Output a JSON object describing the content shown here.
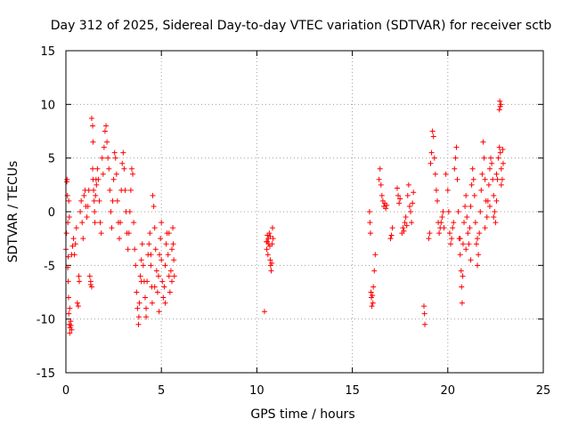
{
  "chart_data": {
    "type": "scatter",
    "title": "Day 312 of 2025, Sidereal Day-to-day VTEC variation (SDTVAR) for receiver sctb",
    "xlabel": "GPS time / hours",
    "ylabel": "SDTVAR / TECUs",
    "xlim": [
      0,
      25
    ],
    "ylim": [
      -15,
      15
    ],
    "grid": true,
    "marker": "plus",
    "color": "#ff0000",
    "x_ticks": [
      {
        "value": 0,
        "label": "0"
      },
      {
        "value": 5,
        "label": "5"
      },
      {
        "value": 10,
        "label": "10"
      },
      {
        "value": 15,
        "label": "15"
      },
      {
        "value": 20,
        "label": "20"
      },
      {
        "value": 25,
        "label": "25"
      }
    ],
    "y_ticks": [
      {
        "value": -15,
        "label": "-15"
      },
      {
        "value": -10,
        "label": "-10"
      },
      {
        "value": -5,
        "label": "-5"
      },
      {
        "value": 0,
        "label": "0"
      },
      {
        "value": 5,
        "label": "5"
      },
      {
        "value": 10,
        "label": "10"
      },
      {
        "value": 15,
        "label": "15"
      }
    ],
    "series": [
      {
        "name": "SDTVAR",
        "points": [
          [
            0.0,
            -3.5
          ],
          [
            0.03,
            -2.0
          ],
          [
            0.05,
            2.8
          ],
          [
            0.08,
            1.5
          ],
          [
            0.1,
            -1.0
          ],
          [
            0.12,
            -4.2
          ],
          [
            0.14,
            -8.0
          ],
          [
            0.15,
            -9.5
          ],
          [
            0.18,
            -10.5
          ],
          [
            0.2,
            -11.3
          ],
          [
            0.22,
            -10.8
          ],
          [
            0.25,
            -10.2
          ],
          [
            0.27,
            -10.6
          ],
          [
            0.3,
            -11.0
          ],
          [
            0.12,
            -6.5
          ],
          [
            0.1,
            -5.2
          ],
          [
            0.2,
            -9.0
          ],
          [
            0.06,
            3.0
          ],
          [
            0.15,
            1.0
          ],
          [
            0.18,
            -0.5
          ],
          [
            0.3,
            -4.0
          ],
          [
            0.35,
            -3.2
          ],
          [
            0.4,
            -2.5
          ],
          [
            0.45,
            -4.0
          ],
          [
            0.5,
            -3.0
          ],
          [
            0.55,
            -1.5
          ],
          [
            0.6,
            -8.5
          ],
          [
            0.65,
            -8.8
          ],
          [
            0.7,
            -6.5
          ],
          [
            0.75,
            0.0
          ],
          [
            0.8,
            1.0
          ],
          [
            0.85,
            -1.0
          ],
          [
            0.9,
            -2.5
          ],
          [
            0.95,
            1.5
          ],
          [
            1.0,
            2.0
          ],
          [
            1.05,
            0.5
          ],
          [
            1.1,
            -0.5
          ],
          [
            1.15,
            0.5
          ],
          [
            1.2,
            2.0
          ],
          [
            0.68,
            -6.0
          ],
          [
            1.25,
            -6.0
          ],
          [
            1.3,
            -6.5
          ],
          [
            1.35,
            -7.0
          ],
          [
            1.4,
            4.0
          ],
          [
            1.42,
            3.0
          ],
          [
            1.45,
            2.0
          ],
          [
            1.48,
            1.0
          ],
          [
            1.5,
            0.0
          ],
          [
            1.52,
            -1.0
          ],
          [
            1.55,
            1.5
          ],
          [
            1.58,
            3.0
          ],
          [
            1.6,
            2.5
          ],
          [
            1.65,
            4.0
          ],
          [
            1.7,
            3.0
          ],
          [
            1.75,
            1.0
          ],
          [
            1.8,
            -1.0
          ],
          [
            1.85,
            -2.0
          ],
          [
            1.9,
            5.0
          ],
          [
            1.95,
            3.5
          ],
          [
            2.0,
            6.0
          ],
          [
            1.35,
            8.7
          ],
          [
            1.4,
            8.0
          ],
          [
            1.42,
            6.5
          ],
          [
            1.3,
            -6.8
          ],
          [
            2.05,
            7.5
          ],
          [
            2.1,
            8.0
          ],
          [
            2.15,
            6.5
          ],
          [
            2.2,
            5.0
          ],
          [
            2.25,
            4.0
          ],
          [
            2.3,
            2.0
          ],
          [
            2.35,
            0.0
          ],
          [
            2.4,
            -1.5
          ],
          [
            2.45,
            1.0
          ],
          [
            2.5,
            3.0
          ],
          [
            2.55,
            5.5
          ],
          [
            2.6,
            5.0
          ],
          [
            2.65,
            3.5
          ],
          [
            2.7,
            1.0
          ],
          [
            2.75,
            -1.0
          ],
          [
            2.8,
            -2.5
          ],
          [
            2.85,
            -1.0
          ],
          [
            2.9,
            2.0
          ],
          [
            2.95,
            4.5
          ],
          [
            3.0,
            5.5
          ],
          [
            3.05,
            4.0
          ],
          [
            3.1,
            2.0
          ],
          [
            3.15,
            0.0
          ],
          [
            3.2,
            -2.0
          ],
          [
            3.25,
            -3.5
          ],
          [
            3.3,
            -2.0
          ],
          [
            3.35,
            0.0
          ],
          [
            3.4,
            2.0
          ],
          [
            3.45,
            4.0
          ],
          [
            3.5,
            3.5
          ],
          [
            3.55,
            -1.0
          ],
          [
            3.6,
            -3.5
          ],
          [
            3.65,
            -5.0
          ],
          [
            3.7,
            -7.5
          ],
          [
            3.75,
            -9.0
          ],
          [
            3.8,
            -10.5
          ],
          [
            3.82,
            -9.8
          ],
          [
            3.85,
            -8.5
          ],
          [
            3.9,
            -6.0
          ],
          [
            3.95,
            -4.5
          ],
          [
            4.0,
            -3.0
          ],
          [
            4.05,
            -5.0
          ],
          [
            4.1,
            -6.5
          ],
          [
            4.15,
            -8.0
          ],
          [
            4.2,
            -9.0
          ],
          [
            4.25,
            -6.5
          ],
          [
            4.3,
            -4.0
          ],
          [
            4.35,
            -3.0
          ],
          [
            4.4,
            -2.0
          ],
          [
            4.45,
            -5.0
          ],
          [
            4.5,
            -7.0
          ],
          [
            4.55,
            1.5
          ],
          [
            4.6,
            0.5
          ],
          [
            4.65,
            -1.5
          ],
          [
            4.7,
            -3.5
          ],
          [
            4.75,
            -5.5
          ],
          [
            4.8,
            -7.5
          ],
          [
            4.85,
            -6.0
          ],
          [
            4.9,
            -4.0
          ],
          [
            4.95,
            -2.5
          ],
          [
            5.0,
            -4.5
          ],
          [
            5.05,
            -6.5
          ],
          [
            5.1,
            -8.0
          ],
          [
            5.15,
            -7.0
          ],
          [
            5.2,
            -5.0
          ],
          [
            5.25,
            -3.0
          ],
          [
            5.3,
            -2.0
          ],
          [
            5.35,
            -4.0
          ],
          [
            5.4,
            -6.0
          ],
          [
            5.45,
            -7.5
          ],
          [
            5.5,
            -5.5
          ],
          [
            5.55,
            -3.5
          ],
          [
            5.6,
            -1.5
          ],
          [
            5.62,
            -3.0
          ],
          [
            5.65,
            -4.5
          ],
          [
            5.68,
            -6.0
          ],
          [
            4.88,
            -9.3
          ],
          [
            4.52,
            -8.5
          ],
          [
            4.2,
            -9.8
          ],
          [
            3.95,
            -6.5
          ],
          [
            4.45,
            -4.0
          ],
          [
            5.0,
            -1.0
          ],
          [
            5.2,
            -8.5
          ],
          [
            5.4,
            -2.0
          ],
          [
            5.55,
            -6.5
          ],
          [
            4.65,
            -7.0
          ],
          [
            10.4,
            -9.3
          ],
          [
            10.5,
            -2.8
          ],
          [
            10.52,
            -3.5
          ],
          [
            10.55,
            -2.2
          ],
          [
            10.58,
            -4.0
          ],
          [
            10.6,
            -2.5
          ],
          [
            10.62,
            -3.0
          ],
          [
            10.65,
            -2.0
          ],
          [
            10.68,
            -3.2
          ],
          [
            10.7,
            -4.5
          ],
          [
            10.72,
            -5.0
          ],
          [
            10.75,
            -5.5
          ],
          [
            10.78,
            -4.8
          ],
          [
            10.8,
            -3.0
          ],
          [
            10.82,
            -1.5
          ],
          [
            10.85,
            -2.5
          ],
          [
            10.55,
            -2.8
          ],
          [
            10.7,
            -2.3
          ],
          [
            15.9,
            0.0
          ],
          [
            15.92,
            -1.0
          ],
          [
            15.95,
            -2.0
          ],
          [
            15.98,
            -7.5
          ],
          [
            16.0,
            -8.0
          ],
          [
            16.02,
            -8.8
          ],
          [
            16.05,
            -7.8
          ],
          [
            16.08,
            -8.5
          ],
          [
            16.1,
            -7.0
          ],
          [
            16.15,
            -5.5
          ],
          [
            16.2,
            -4.0
          ],
          [
            16.4,
            3.0
          ],
          [
            16.45,
            4.0
          ],
          [
            16.5,
            2.5
          ],
          [
            16.55,
            1.5
          ],
          [
            16.6,
            1.0
          ],
          [
            16.65,
            0.5
          ],
          [
            16.7,
            0.8
          ],
          [
            16.75,
            0.3
          ],
          [
            16.8,
            0.6
          ],
          [
            17.0,
            -2.5
          ],
          [
            17.05,
            -2.2
          ],
          [
            17.1,
            -1.5
          ],
          [
            17.35,
            2.2
          ],
          [
            17.4,
            1.5
          ],
          [
            17.45,
            0.8
          ],
          [
            17.5,
            1.2
          ],
          [
            17.6,
            -2.0
          ],
          [
            17.65,
            -1.5
          ],
          [
            17.7,
            -1.8
          ],
          [
            17.75,
            -1.0
          ],
          [
            17.8,
            -0.5
          ],
          [
            17.85,
            -1.3
          ],
          [
            17.9,
            1.5
          ],
          [
            17.95,
            2.5
          ],
          [
            18.0,
            0.5
          ],
          [
            18.05,
            0.0
          ],
          [
            18.1,
            -1.0
          ],
          [
            18.15,
            0.8
          ],
          [
            18.2,
            1.8
          ],
          [
            18.75,
            -8.8
          ],
          [
            18.78,
            -9.5
          ],
          [
            18.8,
            -10.5
          ],
          [
            19.0,
            -2.5
          ],
          [
            19.05,
            -2.0
          ],
          [
            19.1,
            4.5
          ],
          [
            19.15,
            5.5
          ],
          [
            19.2,
            7.5
          ],
          [
            19.25,
            7.0
          ],
          [
            19.3,
            5.0
          ],
          [
            19.35,
            3.5
          ],
          [
            19.4,
            2.0
          ],
          [
            19.45,
            1.0
          ],
          [
            19.5,
            -1.0
          ],
          [
            19.55,
            -2.0
          ],
          [
            19.6,
            -1.5
          ],
          [
            19.65,
            -1.0
          ],
          [
            19.7,
            -0.5
          ],
          [
            19.75,
            0.0
          ],
          [
            19.8,
            -1.5
          ],
          [
            19.9,
            3.5
          ],
          [
            20.0,
            2.0
          ],
          [
            20.05,
            0.0
          ],
          [
            20.1,
            -2.0
          ],
          [
            20.15,
            -3.0
          ],
          [
            20.2,
            -2.5
          ],
          [
            20.25,
            -1.5
          ],
          [
            20.3,
            -1.0
          ],
          [
            20.35,
            4.0
          ],
          [
            20.4,
            5.0
          ],
          [
            20.45,
            6.0
          ],
          [
            20.5,
            3.0
          ],
          [
            20.55,
            0.0
          ],
          [
            20.6,
            -2.5
          ],
          [
            20.65,
            -4.0
          ],
          [
            20.7,
            -5.5
          ],
          [
            20.72,
            -7.0
          ],
          [
            20.75,
            -8.5
          ],
          [
            20.78,
            -6.0
          ],
          [
            20.8,
            -3.0
          ],
          [
            20.85,
            -1.0
          ],
          [
            20.9,
            0.5
          ],
          [
            20.95,
            1.5
          ],
          [
            21.0,
            -0.5
          ],
          [
            21.05,
            -2.0
          ],
          [
            21.1,
            -3.0
          ],
          [
            21.15,
            -1.5
          ],
          [
            21.2,
            0.5
          ],
          [
            21.25,
            2.5
          ],
          [
            21.3,
            4.0
          ],
          [
            21.35,
            3.0
          ],
          [
            21.4,
            1.5
          ],
          [
            21.45,
            -1.0
          ],
          [
            21.5,
            -3.0
          ],
          [
            21.55,
            -5.0
          ],
          [
            21.6,
            -4.0
          ],
          [
            21.65,
            -2.0
          ],
          [
            21.7,
            0.0
          ],
          [
            21.75,
            2.0
          ],
          [
            21.8,
            3.5
          ],
          [
            21.85,
            6.5
          ],
          [
            21.9,
            5.0
          ],
          [
            21.95,
            3.0
          ],
          [
            22.0,
            1.0
          ],
          [
            22.05,
            -0.5
          ],
          [
            22.1,
            1.0
          ],
          [
            22.15,
            2.5
          ],
          [
            22.2,
            4.0
          ],
          [
            22.25,
            5.0
          ],
          [
            22.3,
            4.5
          ],
          [
            22.35,
            3.0
          ],
          [
            22.4,
            1.5
          ],
          [
            22.45,
            0.0
          ],
          [
            22.5,
            -1.0
          ],
          [
            22.55,
            1.0
          ],
          [
            22.6,
            3.0
          ],
          [
            22.65,
            5.0
          ],
          [
            22.7,
            6.0
          ],
          [
            22.75,
            5.5
          ],
          [
            22.8,
            4.0
          ],
          [
            22.7,
            9.5
          ],
          [
            22.72,
            10.3
          ],
          [
            22.75,
            9.8
          ],
          [
            22.78,
            10.0
          ],
          [
            22.8,
            2.5
          ],
          [
            22.85,
            3.0
          ],
          [
            22.88,
            5.8
          ],
          [
            22.9,
            4.5
          ],
          [
            22.55,
            3.5
          ],
          [
            22.4,
            -0.5
          ],
          [
            21.95,
            -1.5
          ],
          [
            21.2,
            -4.5
          ],
          [
            20.65,
            -2.5
          ],
          [
            20.95,
            -3.5
          ],
          [
            21.55,
            -2.5
          ],
          [
            22.2,
            0.5
          ]
        ]
      }
    ]
  }
}
